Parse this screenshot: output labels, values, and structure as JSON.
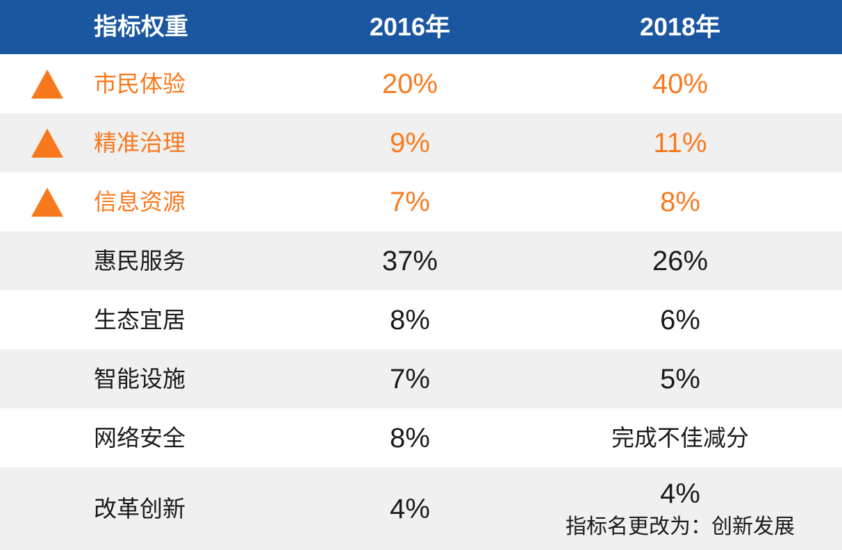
{
  "colors": {
    "header_bg": "#1A57A0",
    "header_text": "#FFFFFF",
    "accent_orange": "#F8791D",
    "row_bg": "#FFFFFF",
    "row_alt_bg": "#F0F0F0",
    "text": "#1A1A1A"
  },
  "table": {
    "header": {
      "col1": "指标权重",
      "col2": "2016年",
      "col3": "2018年"
    },
    "rows": [
      {
        "label": "市民体验",
        "y2016": "20%",
        "y2018": "40%",
        "highlight": true,
        "icon": "up-triangle-icon"
      },
      {
        "label": "精准治理",
        "y2016": "9%",
        "y2018": "11%",
        "highlight": true,
        "icon": "up-triangle-icon"
      },
      {
        "label": "信息资源",
        "y2016": "7%",
        "y2018": "8%",
        "highlight": true,
        "icon": "up-triangle-icon"
      },
      {
        "label": "惠民服务",
        "y2016": "37%",
        "y2018": "26%",
        "highlight": false
      },
      {
        "label": "生态宜居",
        "y2016": "8%",
        "y2018": "6%",
        "highlight": false
      },
      {
        "label": "智能设施",
        "y2016": "7%",
        "y2018": "5%",
        "highlight": false
      },
      {
        "label": "网络安全",
        "y2016": "8%",
        "y2018": "完成不佳减分",
        "highlight": false
      },
      {
        "label": "改革创新",
        "y2016": "4%",
        "y2018": "4%",
        "y2018_note": "指标名更改为：创新发展",
        "highlight": false
      }
    ]
  },
  "chart_data": {
    "type": "table",
    "title": "指标权重",
    "columns": [
      "指标权重",
      "2016年",
      "2018年"
    ],
    "rows": [
      [
        "市民体验",
        "20%",
        "40%"
      ],
      [
        "精准治理",
        "9%",
        "11%"
      ],
      [
        "信息资源",
        "7%",
        "8%"
      ],
      [
        "惠民服务",
        "37%",
        "26%"
      ],
      [
        "生态宜居",
        "8%",
        "6%"
      ],
      [
        "智能设施",
        "7%",
        "5%"
      ],
      [
        "网络安全",
        "8%",
        "完成不佳减分"
      ],
      [
        "改革创新",
        "4%",
        "4%\n指标名更改为：创新发展"
      ]
    ],
    "highlighted_rows": [
      0,
      1,
      2
    ],
    "highlight_marker": "orange up-triangle (weight increased)"
  }
}
